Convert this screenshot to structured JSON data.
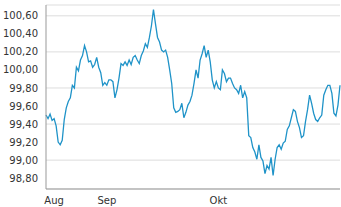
{
  "chart_data": {
    "type": "line",
    "color": "#1f93c8",
    "grid": true,
    "categories": [
      null,
      null,
      null,
      null,
      "Aug",
      null,
      null,
      null,
      null,
      null,
      null,
      null,
      null,
      null,
      null,
      null,
      null,
      null,
      null,
      null,
      null,
      null,
      null,
      null,
      null,
      null,
      null,
      null,
      null,
      null,
      "Sep",
      null,
      null,
      null,
      null,
      null,
      null,
      null,
      null,
      null,
      null,
      null,
      null,
      null,
      null,
      null,
      null,
      null,
      null,
      null,
      null,
      null,
      null,
      null,
      null,
      null,
      null,
      null,
      null,
      null,
      null,
      null,
      null,
      null,
      null,
      null,
      null,
      null,
      null,
      null,
      null,
      null,
      null,
      null,
      null,
      null,
      null,
      null,
      null,
      null,
      null,
      null,
      null,
      null,
      null,
      "Okt",
      null,
      null,
      null,
      null,
      null,
      null,
      null,
      null,
      null,
      null,
      null,
      null,
      null,
      null,
      null,
      null,
      null,
      null,
      null,
      null,
      null,
      null,
      null,
      null,
      null,
      null,
      null,
      null,
      null,
      null,
      null,
      null,
      null,
      null,
      null,
      null,
      null,
      null,
      null,
      null,
      null,
      null,
      null,
      null,
      null,
      null,
      null,
      null,
      null,
      null,
      null,
      null,
      null,
      null,
      null,
      null,
      null,
      null,
      null,
      null
    ],
    "values": [
      99.5,
      99.46,
      99.51,
      99.44,
      99.46,
      99.38,
      99.2,
      99.17,
      99.22,
      99.45,
      99.58,
      99.65,
      99.69,
      99.83,
      99.8,
      100.03,
      99.99,
      100.11,
      100.16,
      100.27,
      100.2,
      100.09,
      100.1,
      100.03,
      100.06,
      100.14,
      100.03,
      99.97,
      99.83,
      99.86,
      99.83,
      99.89,
      99.89,
      99.87,
      99.69,
      99.78,
      99.91,
      100.07,
      100.05,
      100.09,
      100.05,
      100.11,
      100.06,
      100.14,
      100.16,
      100.11,
      100.07,
      100.16,
      100.21,
      100.29,
      100.25,
      100.36,
      100.49,
      100.67,
      100.51,
      100.36,
      100.31,
      100.22,
      100.2,
      100.22,
      100.14,
      100.0,
      99.85,
      99.58,
      99.53,
      99.54,
      99.56,
      99.63,
      99.47,
      99.53,
      99.61,
      99.65,
      99.72,
      99.85,
      100.0,
      99.91,
      100.11,
      100.18,
      100.27,
      100.14,
      100.22,
      100.09,
      99.89,
      99.8,
      99.87,
      99.8,
      99.78,
      100.0,
      99.96,
      99.87,
      99.91,
      99.91,
      99.85,
      99.8,
      99.78,
      99.74,
      99.83,
      99.69,
      99.76,
      99.69,
      99.27,
      99.25,
      99.14,
      99.09,
      99.01,
      99.17,
      99.03,
      98.99,
      98.85,
      98.94,
      98.9,
      99.03,
      98.83,
      99.01,
      99.14,
      99.17,
      99.12,
      99.19,
      99.21,
      99.34,
      99.38,
      99.47,
      99.56,
      99.54,
      99.43,
      99.36,
      99.25,
      99.27,
      99.43,
      99.56,
      99.72,
      99.63,
      99.52,
      99.45,
      99.43,
      99.47,
      99.5,
      99.72,
      99.78,
      99.83,
      99.83,
      99.74,
      99.52,
      99.49,
      99.61,
      99.83
    ],
    "ylim": [
      98.68,
      100.72
    ],
    "yticks": [
      {
        "value": 98.8,
        "label": "98,80"
      },
      {
        "value": 99.0,
        "label": "99,00"
      },
      {
        "value": 99.2,
        "label": "99,20"
      },
      {
        "value": 99.4,
        "label": "99,40"
      },
      {
        "value": 99.6,
        "label": "99,60"
      },
      {
        "value": 99.8,
        "label": "99,80"
      },
      {
        "value": 100.0,
        "label": "100,00"
      },
      {
        "value": 100.2,
        "label": "100,20"
      },
      {
        "value": 100.4,
        "label": "100,40"
      },
      {
        "value": 100.6,
        "label": "100,60"
      }
    ]
  }
}
